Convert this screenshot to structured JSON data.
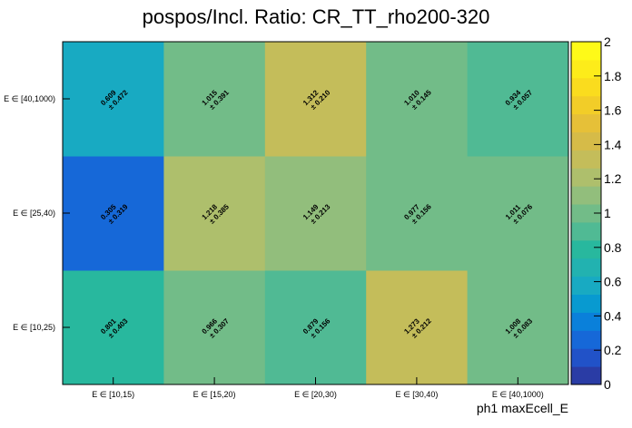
{
  "chart_data": {
    "type": "heatmap",
    "title": "pospos/Incl. Ratio: CR_TT_rho200-320",
    "xlabel": "ph1 maxEcell_E",
    "ylabel": "",
    "x_categories": [
      "E ∈ [10,15)",
      "E ∈ [15,20)",
      "E ∈ [20,30)",
      "E ∈ [30,40)",
      "E ∈ [40,1000)"
    ],
    "y_categories": [
      "E ∈ [10,25)",
      "E ∈ [25,40)",
      "E ∈ [40,1000)"
    ],
    "values": [
      [
        0.801,
        0.966,
        0.879,
        1.273,
        1.008
      ],
      [
        0.305,
        1.218,
        1.149,
        0.977,
        1.011
      ],
      [
        0.609,
        1.015,
        1.312,
        1.01,
        0.934
      ]
    ],
    "errors": [
      [
        0.403,
        0.307,
        0.156,
        0.212,
        0.083
      ],
      [
        0.319,
        0.385,
        0.213,
        0.156,
        0.076
      ],
      [
        0.472,
        0.391,
        0.21,
        0.145,
        0.057
      ]
    ],
    "zlim": [
      0,
      2
    ],
    "z_ticks": [
      "0",
      "0.2",
      "0.4",
      "0.6",
      "0.8",
      "1",
      "1.2",
      "1.4",
      "1.6",
      "1.8",
      "2"
    ],
    "palette": [
      "#2a3ca5",
      "#2152c8",
      "#1668d8",
      "#0a80da",
      "#089ad0",
      "#18aac2",
      "#22b2b0",
      "#28b89e",
      "#50ba94",
      "#72bc88",
      "#92be7c",
      "#aebf6c",
      "#c4bd5a",
      "#d6bb48",
      "#e6c038",
      "#f2cd28",
      "#fadc1e",
      "#fdec1a",
      "#fefa18"
    ]
  }
}
